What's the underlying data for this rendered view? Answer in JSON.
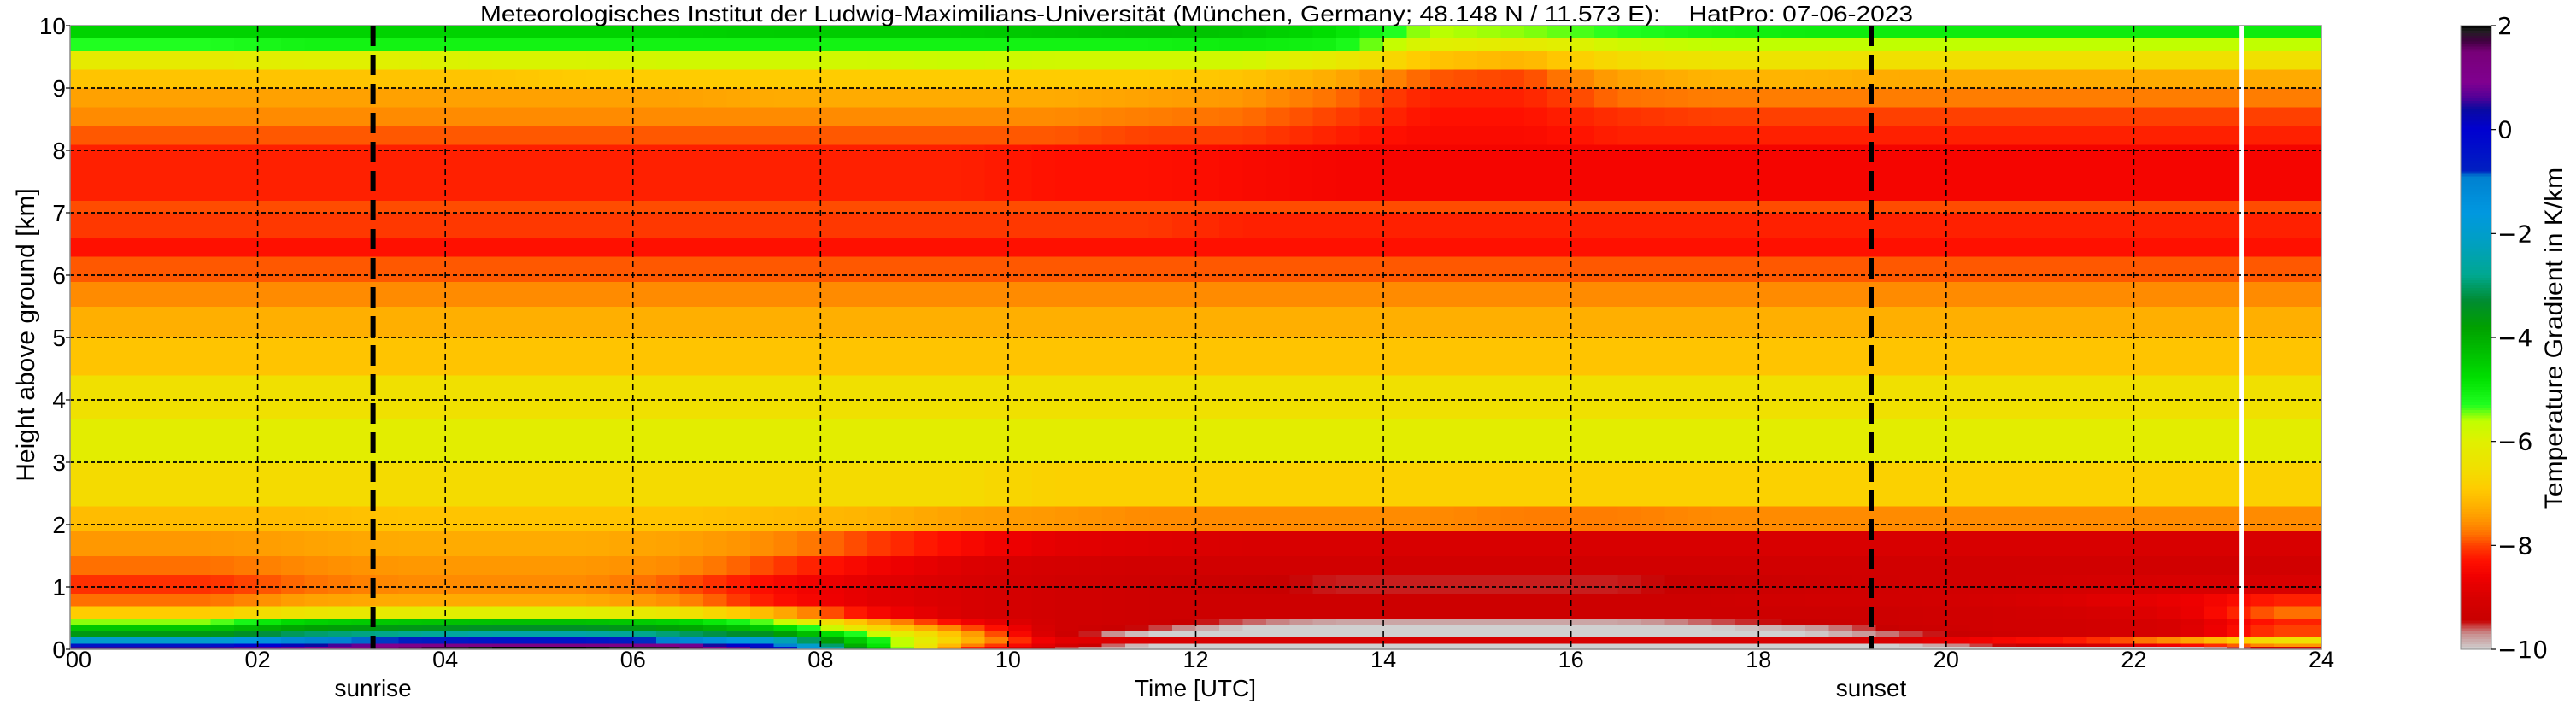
{
  "chart_data": {
    "type": "heatmap",
    "title": "Meteorologisches Institut der Ludwig-Maximilians-Universität (München, Germany; 48.148 N / 11.573 E):    HatPro: 07-06-2023",
    "xlabel": "Time [UTC]",
    "ylabel": "Height above ground [km]",
    "xlim": [
      0,
      24
    ],
    "ylim": [
      0,
      10
    ],
    "grid": true,
    "x_tick_values": [
      0,
      2,
      4,
      6,
      8,
      10,
      12,
      14,
      16,
      18,
      20,
      22,
      24
    ],
    "x_tick_labels": [
      "00",
      "02",
      "04",
      "06",
      "08",
      "10",
      "12",
      "14",
      "16",
      "18",
      "20",
      "22",
      "24"
    ],
    "y_tick_values": [
      0,
      1,
      2,
      3,
      4,
      5,
      6,
      7,
      8,
      9,
      10
    ],
    "y_tick_labels": [
      "0",
      "1",
      "2",
      "3",
      "4",
      "5",
      "6",
      "7",
      "8",
      "9",
      "10"
    ],
    "annotations": [
      {
        "text": "sunrise",
        "time_utc": 3.23
      },
      {
        "text": "sunset",
        "time_utc": 19.2
      }
    ],
    "missing_data_time_utc": 23.15,
    "colorbar": {
      "label": "Temperature Gradient in K/km",
      "range": [
        -10,
        2
      ],
      "tick_values": [
        -10,
        -8,
        -6,
        -4,
        -2,
        0,
        2
      ],
      "tick_labels": [
        "−10",
        "−8",
        "−6",
        "−4",
        "−2",
        "0",
        "2"
      ],
      "stops": [
        [
          -10,
          "#d0d0d0"
        ],
        [
          -9.7,
          "#c89090"
        ],
        [
          -9.45,
          "#c80000"
        ],
        [
          -9.0,
          "#d80000"
        ],
        [
          -8.6,
          "#f00000"
        ],
        [
          -8.3,
          "#ff1000"
        ],
        [
          -8.0,
          "#ff4000"
        ],
        [
          -7.8,
          "#ff7000"
        ],
        [
          -7.5,
          "#ff9800"
        ],
        [
          -7.2,
          "#ffb400"
        ],
        [
          -6.9,
          "#ffcc00"
        ],
        [
          -6.5,
          "#f0e000"
        ],
        [
          -6.0,
          "#e0f000"
        ],
        [
          -5.6,
          "#c0ff00"
        ],
        [
          -5.3,
          "#20ff20"
        ],
        [
          -4.8,
          "#00e000"
        ],
        [
          -4.3,
          "#00c000"
        ],
        [
          -3.8,
          "#00a000"
        ],
        [
          -3.3,
          "#008c30"
        ],
        [
          -2.8,
          "#00a890"
        ],
        [
          -2.2,
          "#00a0c0"
        ],
        [
          -1.6,
          "#0098e0"
        ],
        [
          -0.9,
          "#0080d0"
        ],
        [
          -0.8,
          "#0020c0"
        ],
        [
          0,
          "#0000d0"
        ],
        [
          0.4,
          "#0a0aa0"
        ],
        [
          0.6,
          "#500098"
        ],
        [
          0.9,
          "#800090"
        ],
        [
          1.5,
          "#780078"
        ],
        [
          1.7,
          "#400040"
        ],
        [
          1.9,
          "#202020"
        ],
        [
          2,
          "#000000"
        ]
      ]
    },
    "time_bins_utc": [
      0,
      1,
      2,
      3,
      4,
      5,
      6,
      7,
      8,
      9,
      10,
      11,
      12,
      13,
      14,
      15,
      16,
      17,
      18,
      19,
      20,
      21,
      22,
      23,
      24
    ],
    "height_bins_km": [
      0,
      0.05,
      0.1,
      0.2,
      0.3,
      0.4,
      0.5,
      0.7,
      0.9,
      1.2,
      1.5,
      1.9,
      2.3,
      3.0,
      3.7,
      4.4,
      5.0,
      5.5,
      5.9,
      6.3,
      6.6,
      7.0,
      7.2,
      8.1,
      8.4,
      8.7,
      9.0,
      9.3,
      9.6,
      9.8,
      10
    ],
    "values": [
      [
        0.5,
        0.5,
        0.8,
        1.5,
        2,
        2,
        1.8,
        0,
        -4,
        -8,
        -9.5,
        -10,
        -10,
        -10,
        -10,
        -10,
        -10,
        -10,
        -10,
        -10,
        -10,
        -10,
        -10,
        -9.3
      ],
      [
        -0.5,
        -0.5,
        0.3,
        1,
        1.2,
        1.2,
        1,
        -0.5,
        -4.5,
        -7.5,
        -9,
        -10,
        -10,
        -10,
        -10,
        -10,
        -10,
        -10,
        -10,
        -10,
        -9.5,
        -9.2,
        -8.5,
        -7.5
      ],
      [
        -2,
        -2,
        -1,
        -0.8,
        -0.5,
        -0.5,
        -1,
        -2,
        -4.8,
        -7,
        -8.8,
        -9,
        -9,
        -9,
        -9,
        -9,
        -9,
        -9,
        -9,
        -9,
        -8.5,
        -8.2,
        -7.5,
        -6.5
      ],
      [
        -3.6,
        -3.6,
        -3,
        -2.8,
        -2.5,
        -2.5,
        -3,
        -3.5,
        -5.5,
        -7.2,
        -9.2,
        -10,
        -10,
        -10,
        -10,
        -10,
        -10,
        -10,
        -10,
        -9.6,
        -9.3,
        -9.2,
        -9,
        -8
      ],
      [
        -4.4,
        -4.4,
        -3.8,
        -3.6,
        -3.4,
        -3.4,
        -3.8,
        -4.5,
        -6.5,
        -7.8,
        -9.2,
        -9.5,
        -10,
        -10,
        -10,
        -10,
        -10,
        -10,
        -9.8,
        -9.4,
        -9.2,
        -9.2,
        -9,
        -8
      ],
      [
        -5.5,
        -5.5,
        -4.6,
        -4.4,
        -4.3,
        -4.3,
        -4.6,
        -5.5,
        -7.2,
        -8.5,
        -9.2,
        -9.3,
        -9.6,
        -9.8,
        -9.8,
        -9.8,
        -9.8,
        -9.6,
        -9.4,
        -9.3,
        -9.2,
        -9.2,
        -9,
        -8.2
      ],
      [
        -6.9,
        -6.9,
        -6.4,
        -6.2,
        -6.0,
        -6.0,
        -6.4,
        -7.2,
        -8.4,
        -9.0,
        -9.2,
        -9.3,
        -9.3,
        -9.3,
        -9.3,
        -9.3,
        -9.3,
        -9.3,
        -9.3,
        -9.3,
        -9.2,
        -9.1,
        -8.8,
        -7.8
      ],
      [
        -7.8,
        -7.8,
        -7.4,
        -7.3,
        -7.3,
        -7.3,
        -7.6,
        -8.3,
        -8.8,
        -9.0,
        -9.2,
        -9.3,
        -9.3,
        -9.3,
        -9.3,
        -9.3,
        -9.3,
        -9.3,
        -9.2,
        -9.2,
        -9.1,
        -8.9,
        -8.7,
        -8.2
      ],
      [
        -8.1,
        -8.1,
        -7.8,
        -7.6,
        -7.6,
        -7.6,
        -7.9,
        -8.4,
        -8.8,
        -9.0,
        -9.2,
        -9.3,
        -9.4,
        -9.5,
        -9.5,
        -9.5,
        -9.5,
        -9.4,
        -9.3,
        -9.2,
        -9.2,
        -9.1,
        -9.0,
        -9.0
      ],
      [
        -7.8,
        -7.8,
        -7.6,
        -7.5,
        -7.5,
        -7.5,
        -7.6,
        -8.0,
        -8.5,
        -8.9,
        -9.1,
        -9.2,
        -9.2,
        -9.2,
        -9.2,
        -9.2,
        -9.2,
        -9.2,
        -9.2,
        -9.2,
        -9.2,
        -9.2,
        -9.2,
        -9.2
      ],
      [
        -7.5,
        -7.5,
        -7.4,
        -7.3,
        -7.3,
        -7.3,
        -7.4,
        -7.6,
        -8.0,
        -8.4,
        -8.8,
        -8.9,
        -9.0,
        -9.0,
        -9.0,
        -9.0,
        -9.0,
        -9.0,
        -9.0,
        -9.0,
        -9.0,
        -9.0,
        -9.0,
        -9.0
      ],
      [
        -7.1,
        -7.1,
        -7.1,
        -7.0,
        -7.0,
        -7.0,
        -7.0,
        -7.1,
        -7.2,
        -7.4,
        -7.5,
        -7.6,
        -7.6,
        -7.6,
        -7.6,
        -7.7,
        -7.7,
        -7.6,
        -7.6,
        -7.6,
        -7.6,
        -7.6,
        -7.6,
        -7.6
      ],
      [
        -6.6,
        -6.6,
        -6.6,
        -6.6,
        -6.6,
        -6.6,
        -6.6,
        -6.6,
        -6.6,
        -6.6,
        -6.8,
        -6.8,
        -6.8,
        -6.8,
        -6.8,
        -6.8,
        -6.8,
        -6.8,
        -6.8,
        -6.8,
        -6.8,
        -6.8,
        -6.8,
        -6.8
      ],
      [
        -6.1,
        -6.1,
        -6.1,
        -6.1,
        -6.1,
        -6.1,
        -6.1,
        -6.1,
        -6.1,
        -6.1,
        -6.1,
        -6.1,
        -6.1,
        -6.1,
        -6.1,
        -6.1,
        -6.1,
        -6.1,
        -6.1,
        -6.1,
        -6.1,
        -6.1,
        -6.1,
        -6.1
      ],
      [
        -6.5,
        -6.5,
        -6.5,
        -6.5,
        -6.5,
        -6.5,
        -6.5,
        -6.5,
        -6.5,
        -6.5,
        -6.5,
        -6.5,
        -6.5,
        -6.5,
        -6.5,
        -6.5,
        -6.5,
        -6.5,
        -6.5,
        -6.5,
        -6.5,
        -6.5,
        -6.5,
        -6.5
      ],
      [
        -7.0,
        -7.0,
        -7.0,
        -7.0,
        -7.0,
        -7.0,
        -7.0,
        -7.0,
        -7.0,
        -7.0,
        -7.0,
        -7.0,
        -7.0,
        -7.0,
        -7.0,
        -7.0,
        -7.0,
        -7.0,
        -7.0,
        -7.0,
        -7.0,
        -7.0,
        -7.0,
        -7.0
      ],
      [
        -7.25,
        -7.25,
        -7.25,
        -7.25,
        -7.25,
        -7.25,
        -7.25,
        -7.25,
        -7.25,
        -7.25,
        -7.25,
        -7.25,
        -7.25,
        -7.25,
        -7.25,
        -7.25,
        -7.25,
        -7.25,
        -7.25,
        -7.25,
        -7.25,
        -7.25,
        -7.25,
        -7.25
      ],
      [
        -7.6,
        -7.6,
        -7.6,
        -7.6,
        -7.6,
        -7.6,
        -7.6,
        -7.6,
        -7.6,
        -7.6,
        -7.6,
        -7.6,
        -7.6,
        -7.6,
        -7.6,
        -7.6,
        -7.6,
        -7.6,
        -7.6,
        -7.6,
        -7.6,
        -7.6,
        -7.6,
        -7.6
      ],
      [
        -7.9,
        -7.9,
        -7.9,
        -7.9,
        -7.9,
        -7.9,
        -7.9,
        -7.9,
        -7.9,
        -7.9,
        -7.9,
        -7.9,
        -7.9,
        -7.9,
        -7.9,
        -7.9,
        -7.9,
        -7.9,
        -7.9,
        -7.9,
        -7.9,
        -7.9,
        -7.9,
        -7.9
      ],
      [
        -8.3,
        -8.3,
        -8.3,
        -8.3,
        -8.3,
        -8.3,
        -8.3,
        -8.3,
        -8.3,
        -8.3,
        -8.3,
        -8.3,
        -8.3,
        -8.3,
        -8.3,
        -8.3,
        -8.3,
        -8.3,
        -8.3,
        -8.3,
        -8.3,
        -8.3,
        -8.3,
        -8.3
      ],
      [
        -8.05,
        -8.05,
        -8.05,
        -8.05,
        -8.05,
        -8.05,
        -8.05,
        -8.05,
        -8.05,
        -8.05,
        -8.05,
        -8.05,
        -8.2,
        -8.2,
        -8.2,
        -8.2,
        -8.2,
        -8.2,
        -8.2,
        -8.2,
        -8.2,
        -8.2,
        -8.2,
        -8.2
      ],
      [
        -7.95,
        -7.95,
        -7.95,
        -7.95,
        -7.95,
        -7.95,
        -7.95,
        -7.95,
        -7.95,
        -7.95,
        -7.95,
        -7.95,
        -7.95,
        -7.95,
        -7.95,
        -7.95,
        -7.95,
        -7.95,
        -7.95,
        -7.95,
        -7.95,
        -7.95,
        -7.95,
        -7.95
      ],
      [
        -8.2,
        -8.2,
        -8.2,
        -8.2,
        -8.2,
        -8.2,
        -8.2,
        -8.2,
        -8.2,
        -8.2,
        -8.3,
        -8.3,
        -8.4,
        -8.5,
        -8.5,
        -8.5,
        -8.5,
        -8.5,
        -8.5,
        -8.5,
        -8.5,
        -8.5,
        -8.5,
        -8.5
      ],
      [
        -7.9,
        -7.9,
        -7.9,
        -7.9,
        -7.9,
        -7.9,
        -7.9,
        -7.9,
        -7.9,
        -7.9,
        -7.9,
        -8.0,
        -8.0,
        -8.2,
        -8.4,
        -8.4,
        -8.2,
        -8.2,
        -8.2,
        -8.2,
        -8.2,
        -8.2,
        -8.2,
        -8.2
      ],
      [
        -7.6,
        -7.6,
        -7.6,
        -7.6,
        -7.6,
        -7.6,
        -7.6,
        -7.6,
        -7.6,
        -7.6,
        -7.6,
        -7.7,
        -7.8,
        -8.0,
        -8.3,
        -8.3,
        -8.1,
        -8.0,
        -8.0,
        -8.0,
        -8.0,
        -8.0,
        -8.0,
        -8.0
      ],
      [
        -7.4,
        -7.4,
        -7.4,
        -7.4,
        -7.4,
        -7.4,
        -7.4,
        -7.3,
        -7.3,
        -7.3,
        -7.3,
        -7.4,
        -7.5,
        -7.8,
        -8.2,
        -8.2,
        -7.8,
        -7.7,
        -7.7,
        -7.7,
        -7.7,
        -7.7,
        -7.7,
        -7.7
      ],
      [
        -7.0,
        -7.0,
        -7.0,
        -7.0,
        -7.0,
        -6.9,
        -6.9,
        -6.9,
        -6.9,
        -6.9,
        -6.9,
        -6.9,
        -7.0,
        -7.3,
        -7.9,
        -8.0,
        -7.4,
        -7.2,
        -7.2,
        -7.3,
        -7.3,
        -7.3,
        -7.3,
        -7.3
      ],
      [
        -6.2,
        -6.2,
        -6.0,
        -6.0,
        -5.9,
        -5.9,
        -5.8,
        -5.8,
        -5.8,
        -5.7,
        -5.8,
        -5.8,
        -5.8,
        -6.2,
        -7.0,
        -7.2,
        -6.6,
        -6.4,
        -6.4,
        -6.5,
        -6.5,
        -6.5,
        -6.5,
        -6.5
      ],
      [
        -5.3,
        -5.3,
        -5.1,
        -5.1,
        -5.1,
        -5.1,
        -5.1,
        -5.1,
        -5.1,
        -5.1,
        -5.1,
        -5.1,
        -5.0,
        -5.1,
        -6.0,
        -6.2,
        -5.8,
        -5.6,
        -5.6,
        -5.6,
        -5.6,
        -5.6,
        -5.6,
        -5.6
      ],
      [
        -4.6,
        -4.6,
        -4.6,
        -4.6,
        -4.6,
        -4.6,
        -4.6,
        -4.5,
        -4.5,
        -4.5,
        -4.4,
        -4.3,
        -4.4,
        -4.8,
        -5.6,
        -5.5,
        -5.3,
        -5.1,
        -5.0,
        -5.0,
        -5.0,
        -5.0,
        -5.0,
        -5.0
      ]
    ]
  }
}
